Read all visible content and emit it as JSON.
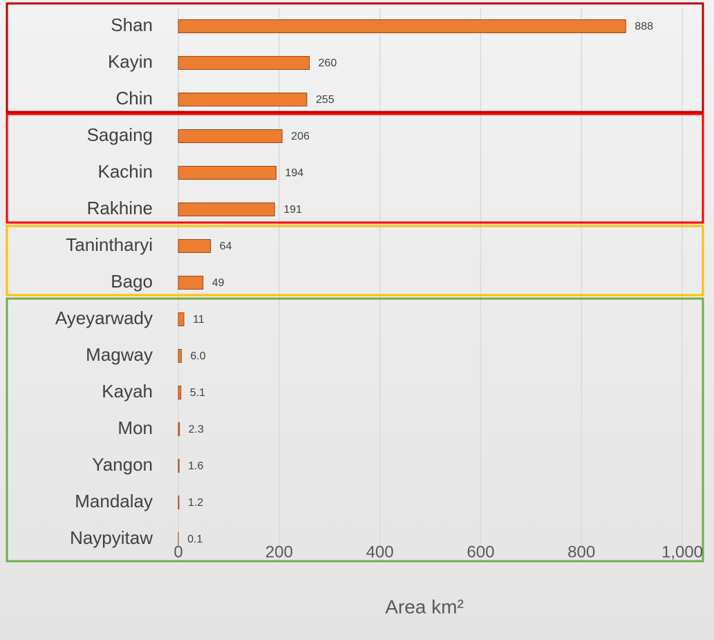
{
  "chart_data": {
    "type": "bar",
    "orientation": "horizontal",
    "categories": [
      "Shan",
      "Kayin",
      "Chin",
      "Sagaing",
      "Kachin",
      "Rakhine",
      "Tanintharyi",
      "Bago",
      "Ayeyarwady",
      "Magway",
      "Kayah",
      "Mon",
      "Yangon",
      "Mandalay",
      "Naypyitaw"
    ],
    "values": [
      888,
      260,
      255,
      206,
      194,
      191,
      64,
      49,
      11,
      6.0,
      5.1,
      2.3,
      1.6,
      1.2,
      0.1
    ],
    "value_labels": [
      "888",
      "260",
      "255",
      "206",
      "194",
      "191",
      "64",
      "49",
      "11",
      "6.0",
      "5.1",
      "2.3",
      "1.6",
      "1.2",
      "0.1"
    ],
    "color": "#ed7d31",
    "xlabel": "Area km²",
    "xlim": [
      0,
      1000
    ],
    "xticks": [
      0,
      200,
      400,
      600,
      800,
      {
        "value": 1000,
        "label": "1,000"
      }
    ],
    "grid": true
  }
}
